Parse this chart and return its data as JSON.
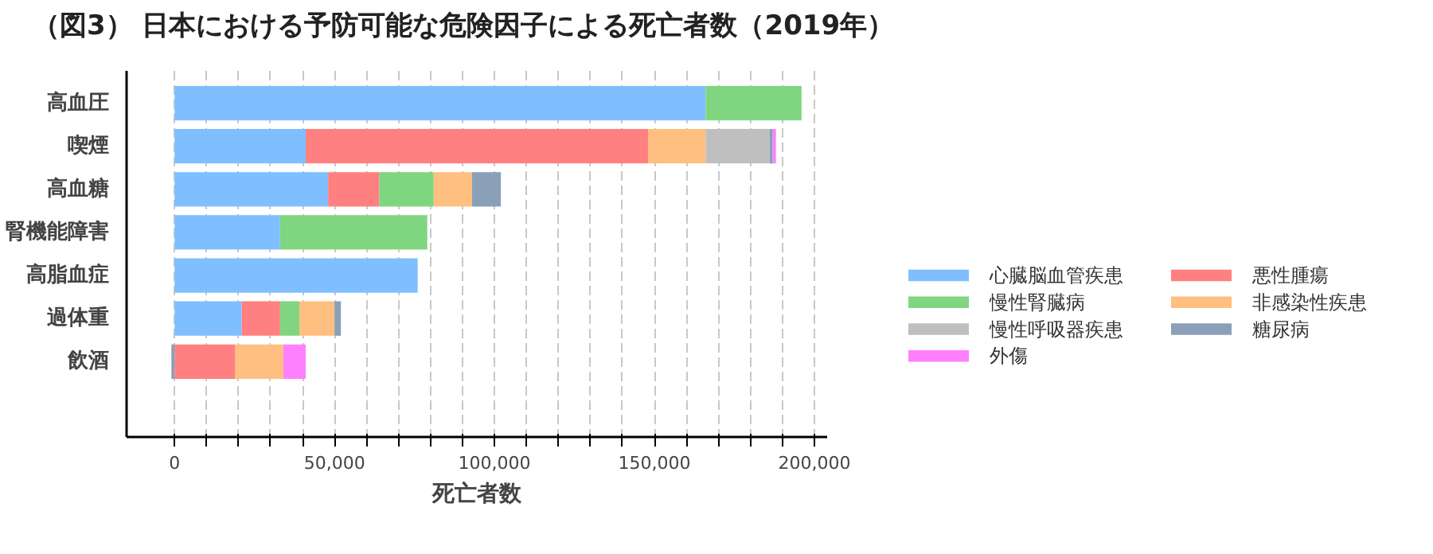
{
  "chart_data": {
    "type": "bar",
    "orientation": "horizontal",
    "stacked": true,
    "title": "（図3） 日本における予防可能な危険因子による死亡者数（2019年）",
    "xlabel": "死亡者数",
    "categories": [
      "高血圧",
      "喫煙",
      "高血糖",
      "腎機能障害",
      "高脂血症",
      "過体重",
      "飲酒"
    ],
    "series": [
      {
        "name": "心臓脳血管疾患",
        "color": "#80bfff",
        "values": [
          166000,
          41000,
          48000,
          33000,
          76000,
          21000,
          null
        ]
      },
      {
        "name": "悪性腫瘍",
        "color": "#ff8080",
        "values": [
          null,
          107000,
          16000,
          null,
          null,
          12000,
          19000
        ]
      },
      {
        "name": "慢性腎臓病",
        "color": "#80d680",
        "values": [
          30000,
          null,
          17000,
          46000,
          null,
          6000,
          null
        ]
      },
      {
        "name": "非感染性疾患",
        "color": "#ffbf80",
        "values": [
          null,
          18000,
          12000,
          null,
          null,
          11000,
          15000
        ]
      },
      {
        "name": "慢性呼吸器疾患",
        "color": "#bfbfbf",
        "values": [
          null,
          20000,
          null,
          null,
          null,
          null,
          null
        ]
      },
      {
        "name": "糖尿病",
        "color": "#8aa0b8",
        "values": [
          null,
          1000,
          9000,
          null,
          null,
          2000,
          -1000
        ]
      },
      {
        "name": "外傷",
        "color": "#ff80ff",
        "values": [
          null,
          1000,
          null,
          null,
          null,
          null,
          7000
        ]
      }
    ],
    "xlim": [
      -15000,
      204000
    ],
    "xticks": [
      0,
      {
        "value": 10000,
        "label": null
      },
      {
        "value": 20000,
        "label": null
      },
      {
        "value": 30000,
        "label": null
      },
      {
        "value": 40000,
        "label": null
      },
      {
        "value": 50000,
        "label": "50,000"
      },
      {
        "value": 60000,
        "label": null
      },
      {
        "value": 70000,
        "label": null
      },
      {
        "value": 80000,
        "label": null
      },
      {
        "value": 90000,
        "label": null
      },
      {
        "value": 100000,
        "label": "100,000"
      },
      {
        "value": 110000,
        "label": null
      },
      {
        "value": 120000,
        "label": null
      },
      {
        "value": 130000,
        "label": null
      },
      {
        "value": 140000,
        "label": null
      },
      {
        "value": 150000,
        "label": "150,000"
      },
      {
        "value": 160000,
        "label": null
      },
      {
        "value": 170000,
        "label": null
      },
      {
        "value": 180000,
        "label": null
      },
      {
        "value": 190000,
        "label": null
      },
      {
        "value": 200000,
        "label": "200,000"
      }
    ],
    "grid": "x",
    "legend": "right"
  }
}
